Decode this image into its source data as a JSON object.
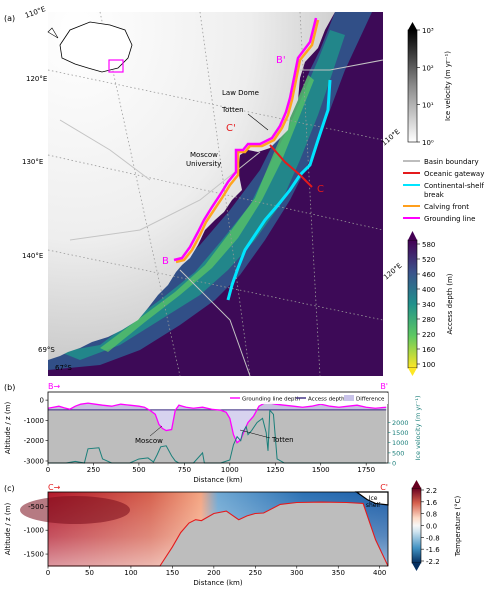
{
  "panels": {
    "a": "(a)",
    "b": "(b)",
    "c": "(c)"
  },
  "map": {
    "lon_labels": [
      "110°E",
      "120°E",
      "130°E",
      "140°E",
      "110°E",
      "120°E"
    ],
    "lat_labels": [
      "69°S",
      "67°S"
    ],
    "place_labels": [
      "Law Dome",
      "Totten",
      "Moscow University"
    ],
    "section_labels": [
      "B'",
      "B",
      "C'",
      "C"
    ]
  },
  "colorbars": {
    "velocity": {
      "label": "Ice velocity (m yr⁻¹)",
      "ticks": [
        "10³",
        "10²",
        "10¹",
        "10⁰"
      ],
      "scale": "log",
      "colors": [
        "#ffffff",
        "#000000"
      ]
    },
    "access_depth": {
      "label": "Access depth (m)",
      "ticks": [
        "580",
        "520",
        "460",
        "400",
        "340",
        "280",
        "220",
        "160",
        "100"
      ],
      "colors": [
        "#440154",
        "#3b528b",
        "#21918c",
        "#5ec962",
        "#fde725"
      ]
    },
    "temperature": {
      "label": "Temperature (°C)",
      "ticks": [
        "2.2",
        "1.6",
        "0.8",
        "0.0",
        "-0.8",
        "-1.6",
        "-2.2"
      ],
      "colors": [
        "#67001f",
        "#d6604d",
        "#fddbc7",
        "#f7f7f7",
        "#d1e5f0",
        "#4393c3",
        "#053061"
      ]
    }
  },
  "legend": [
    {
      "label": "Basin boundary",
      "color": "#bdbdbd"
    },
    {
      "label": "Oceanic gateway",
      "color": "#e41a1c"
    },
    {
      "label": "Continental-shelf break",
      "color": "#00e5ff"
    },
    {
      "label": "Calving front",
      "color": "#ff9f1c"
    },
    {
      "label": "Grounding line",
      "color": "#ff00ff"
    }
  ],
  "chart_data": [
    {
      "id": "b",
      "type": "line",
      "section_start": "B→",
      "section_end": "B'",
      "xlabel": "Distance (km)",
      "ylabel": "Altitude / z (m)",
      "y2label": "Ice velocity (m yr⁻¹)",
      "xlim": [
        0,
        1870
      ],
      "ylim": [
        -3100,
        400
      ],
      "y2lim": [
        0,
        3500
      ],
      "xticks": [
        "0",
        "250",
        "500",
        "750",
        "1000",
        "1250",
        "1500",
        "1750"
      ],
      "yticks": [
        "0",
        "-1000",
        "-2000",
        "-3000"
      ],
      "y2ticks": [
        "2000",
        "1500",
        "1000",
        "500",
        "0"
      ],
      "legend": [
        "Grounding line depth",
        "Access depth",
        "Difference"
      ],
      "annotations": [
        "Moscow",
        "Totten"
      ],
      "series": [
        {
          "name": "Grounding line depth",
          "color": "#ff00ff",
          "x": [
            0,
            30,
            60,
            90,
            120,
            150,
            180,
            220,
            260,
            300,
            350,
            400,
            450,
            500,
            530,
            560,
            590,
            610,
            630,
            650,
            680,
            700,
            720,
            740,
            760,
            800,
            850,
            900,
            950,
            980,
            1000,
            1020,
            1040,
            1060,
            1080,
            1100,
            1130,
            1160,
            1200,
            1250,
            1300,
            1350,
            1400,
            1450,
            1500,
            1550,
            1600,
            1650,
            1700,
            1750,
            1800,
            1860
          ],
          "y": [
            -400,
            -350,
            -300,
            -380,
            -450,
            -300,
            -200,
            -150,
            -200,
            -250,
            -300,
            -200,
            -250,
            -300,
            -350,
            -500,
            -700,
            -1200,
            -1400,
            -1500,
            -1450,
            -500,
            -250,
            -300,
            -350,
            -400,
            -350,
            -450,
            -500,
            -600,
            -900,
            -1700,
            -2100,
            -1950,
            -1500,
            -1100,
            -800,
            -300,
            -100,
            -200,
            -250,
            -300,
            -350,
            -300,
            -200,
            -300,
            -350,
            -300,
            -250,
            -350,
            -400,
            -350
          ]
        },
        {
          "name": "Access depth",
          "color": "#3b2a80",
          "x": [
            0,
            1860
          ],
          "y": [
            -480,
            -480
          ]
        },
        {
          "name": "Ice velocity",
          "color": "#1b7f7a",
          "axis": "y2",
          "x": [
            0,
            100,
            150,
            200,
            220,
            280,
            300,
            350,
            400,
            450,
            500,
            550,
            580,
            600,
            620,
            650,
            680,
            700,
            720,
            760,
            800,
            850,
            860,
            880,
            950,
            1000,
            1020,
            1040,
            1060,
            1070,
            1090,
            1100,
            1120,
            1150,
            1180,
            1200,
            1210,
            1220,
            1240,
            1260,
            1300,
            1860
          ],
          "y": [
            0,
            0,
            80,
            0,
            700,
            750,
            200,
            0,
            0,
            0,
            200,
            250,
            50,
            400,
            800,
            850,
            350,
            100,
            0,
            0,
            0,
            500,
            0,
            0,
            0,
            150,
            900,
            1300,
            1100,
            1500,
            1800,
            1400,
            1600,
            2000,
            2200,
            1500,
            600,
            2600,
            2400,
            200,
            0,
            0
          ]
        }
      ]
    },
    {
      "id": "c",
      "type": "heatmap",
      "section_start": "C→",
      "section_end": "C'",
      "xlabel": "Distance (km)",
      "ylabel": "Altitude / z (m)",
      "xlim": [
        0,
        410
      ],
      "ylim": [
        -1750,
        -200
      ],
      "xticks": [
        "0",
        "50",
        "100",
        "150",
        "200",
        "250",
        "300",
        "350",
        "400"
      ],
      "yticks": [
        "-500",
        "-1000",
        "-1500"
      ],
      "annotations": [
        "Ice shelf"
      ],
      "seafloor": {
        "x": [
          0,
          135,
          150,
          160,
          170,
          178,
          185,
          200,
          215,
          230,
          240,
          250,
          260,
          280,
          300,
          330,
          360,
          380,
          395,
          410
        ],
        "y": [
          -1750,
          -1750,
          -1350,
          -1050,
          -850,
          -780,
          -800,
          -650,
          -600,
          -780,
          -700,
          -650,
          -640,
          -460,
          -420,
          -410,
          -420,
          -440,
          -1200,
          -1750
        ]
      }
    }
  ]
}
